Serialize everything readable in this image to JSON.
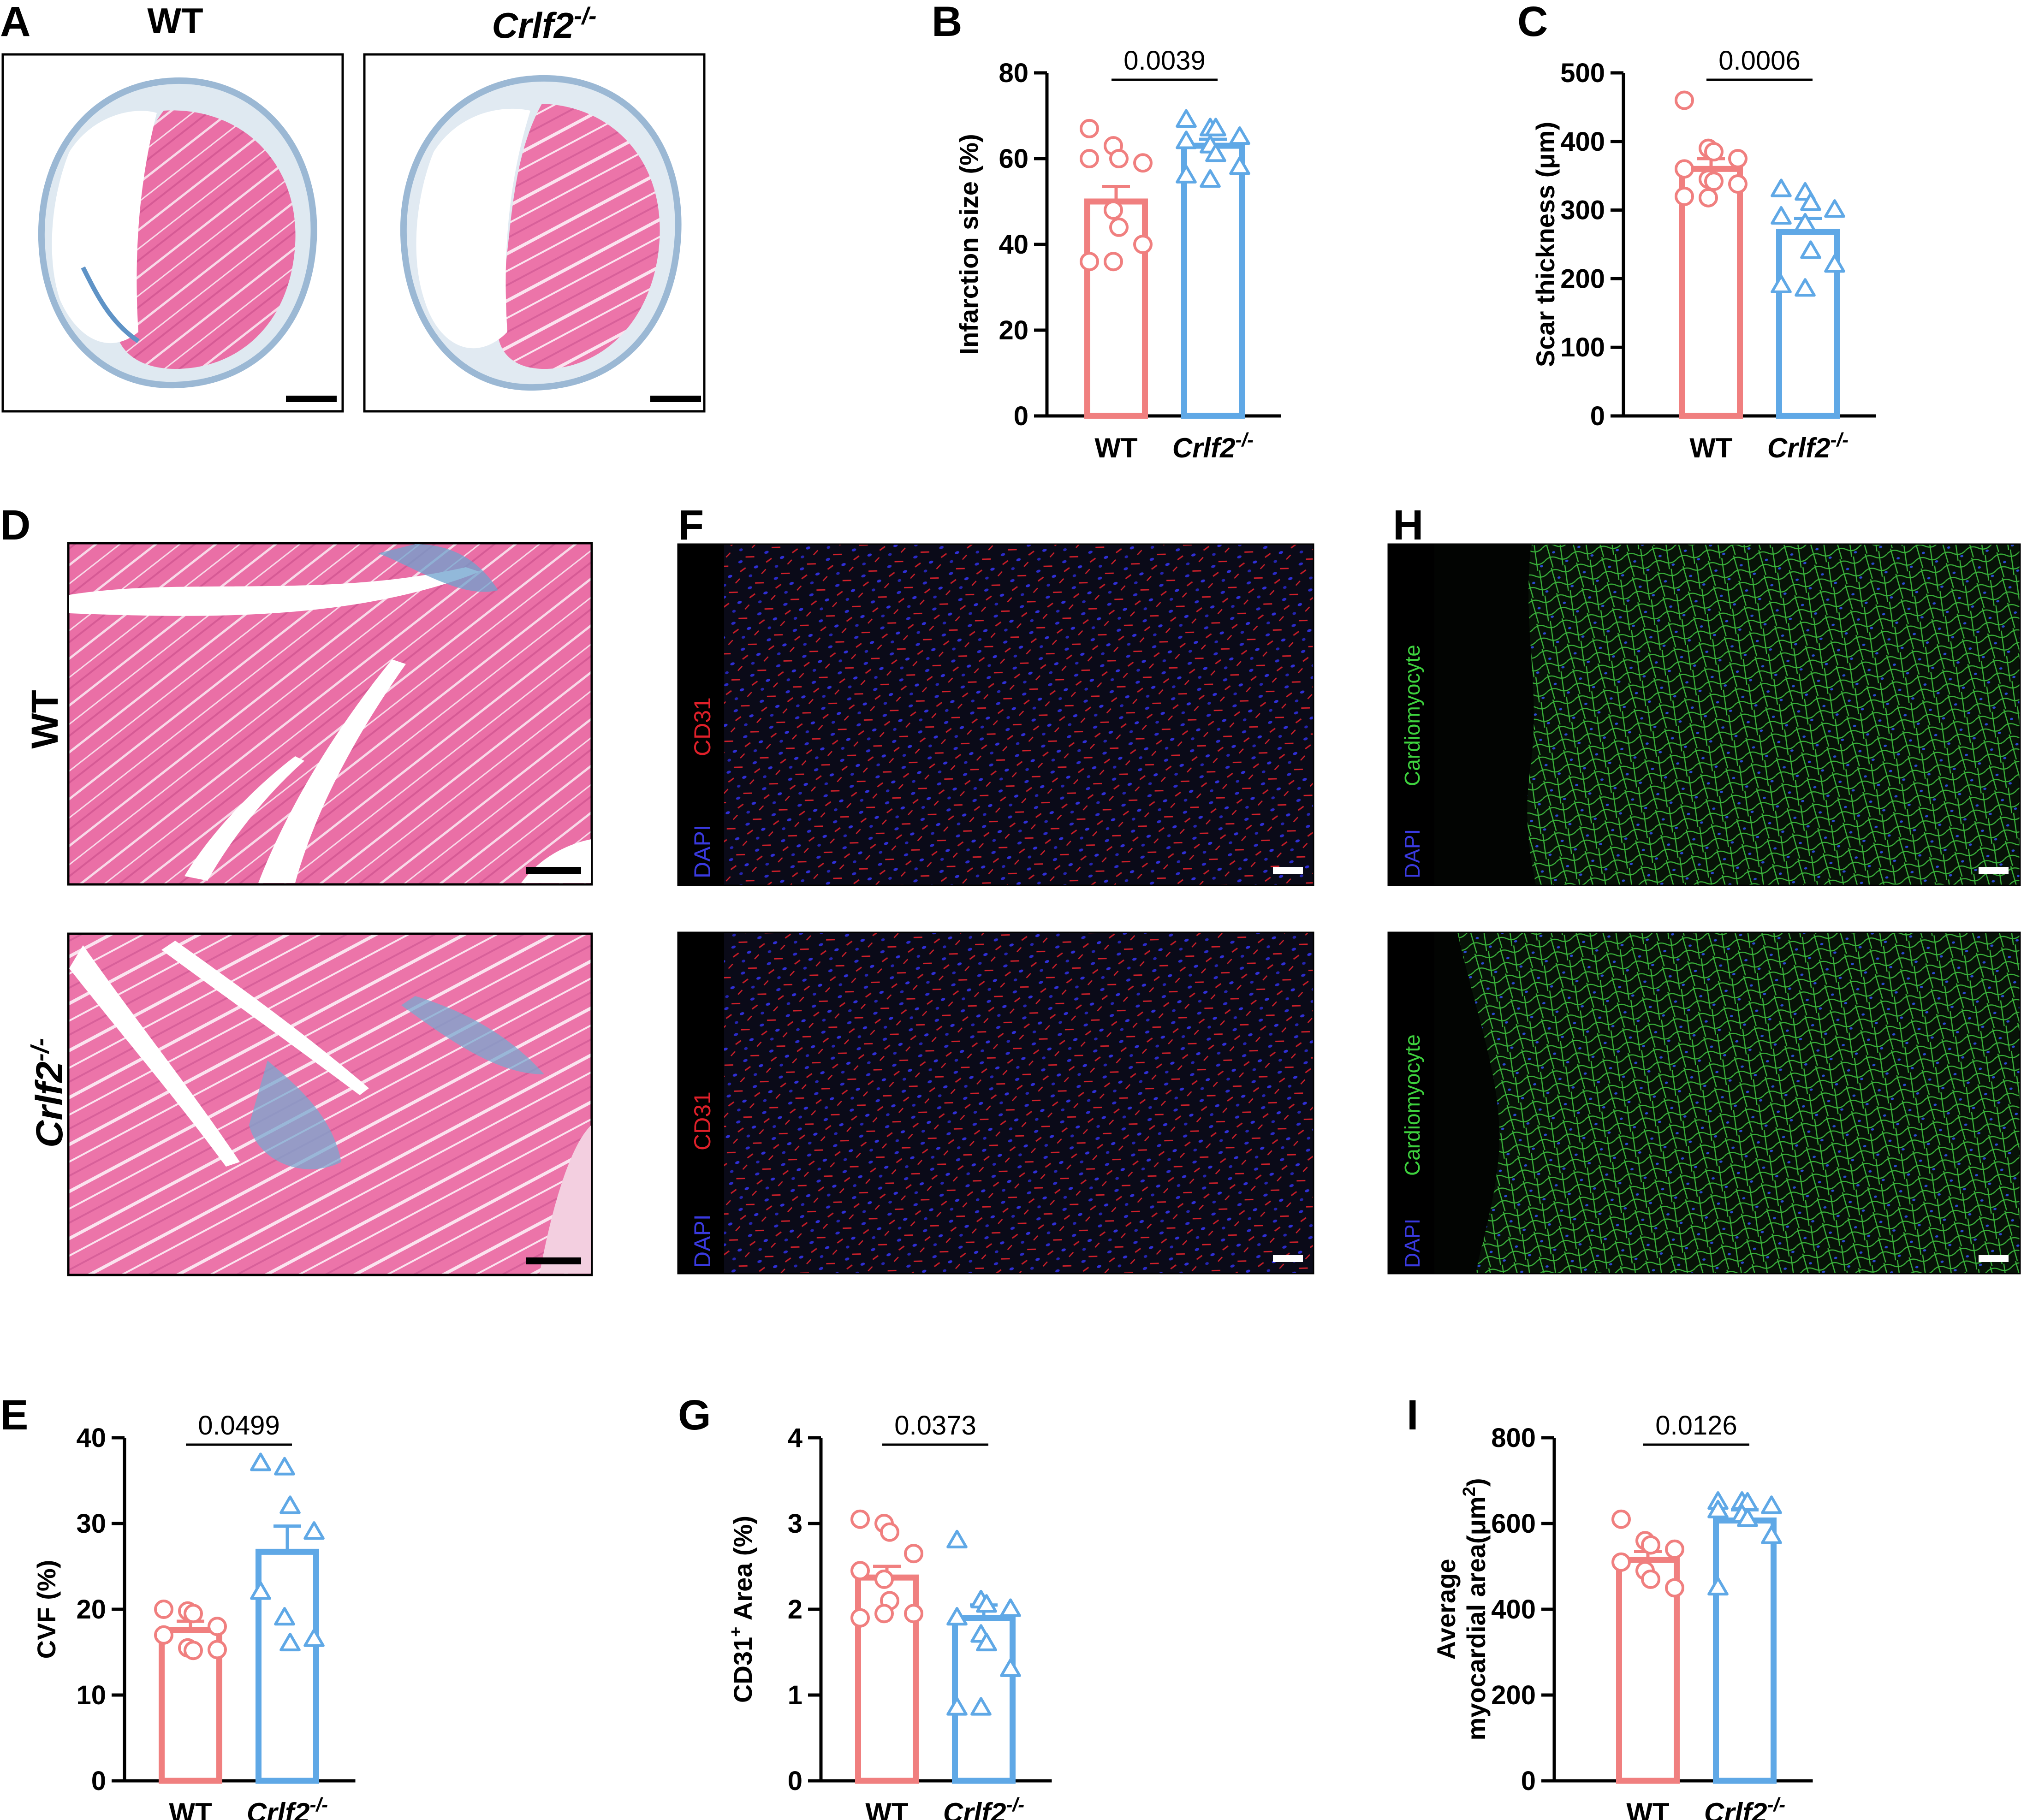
{
  "panel_letters": [
    "A",
    "B",
    "C",
    "D",
    "E",
    "F",
    "G",
    "H",
    "I"
  ],
  "colors": {
    "wt": "#f07f7f",
    "ko": "#5fa8e6"
  },
  "group_wt": "WT",
  "group_ko_main": "Crlf2",
  "group_ko_sup": "-/-",
  "micro": {
    "cd31_label": "CD31",
    "dapi_label": "DAPI",
    "cardiomyocyte_label": "Cardiomyocyte"
  },
  "chart_data": [
    {
      "id": "B",
      "type": "bar",
      "ylabel": "Infarction  size (%)",
      "ylim": [
        0,
        80
      ],
      "yticks": [
        0,
        20,
        40,
        60,
        80
      ],
      "pvalue": "0.0039",
      "series": [
        {
          "mean": 50.0,
          "sem": 3.5,
          "marker": "circle",
          "points": [
            67,
            63,
            60,
            59,
            60,
            48,
            44,
            40,
            36,
            36
          ]
        },
        {
          "mean": 63.0,
          "sem": 1.5,
          "marker": "triangle",
          "points": [
            69,
            67,
            67,
            65,
            64,
            63,
            61,
            58,
            56,
            55
          ]
        }
      ]
    },
    {
      "id": "C",
      "type": "bar",
      "ylabel": "Scar thickness (μm)",
      "ylim": [
        0,
        500
      ],
      "yticks": [
        0,
        100,
        200,
        300,
        400,
        500
      ],
      "pvalue": "0.0006",
      "series": [
        {
          "mean": 360,
          "sem": 15,
          "marker": "circle",
          "points": [
            460,
            390,
            385,
            375,
            360,
            345,
            342,
            338,
            320,
            318
          ]
        },
        {
          "mean": 268,
          "sem": 20,
          "marker": "triangle",
          "points": [
            330,
            325,
            310,
            300,
            290,
            280,
            240,
            220,
            190,
            185
          ]
        }
      ]
    },
    {
      "id": "E",
      "type": "bar",
      "ylabel": "CVF (%)",
      "ylim": [
        0,
        40
      ],
      "yticks": [
        0,
        10,
        20,
        30,
        40
      ],
      "pvalue": "0.0499",
      "series": [
        {
          "mean": 17.6,
          "sem": 1.0,
          "marker": "circle",
          "points": [
            20,
            19.8,
            19.5,
            18,
            17,
            15.5,
            15.2,
            15.3
          ]
        },
        {
          "mean": 26.7,
          "sem": 3.0,
          "marker": "triangle",
          "points": [
            37,
            36.5,
            32,
            29,
            22,
            19,
            16,
            16.5
          ]
        }
      ]
    },
    {
      "id": "G",
      "type": "bar",
      "ylabel_main": "CD31",
      "ylabel_sup": "+",
      "ylabel_rest": " Area (%)",
      "ylim": [
        0,
        4
      ],
      "yticks": [
        0,
        1,
        2,
        3,
        4
      ],
      "pvalue": "0.0373",
      "series": [
        {
          "mean": 2.37,
          "sem": 0.13,
          "marker": "circle",
          "points": [
            3.05,
            3.0,
            2.9,
            2.65,
            2.45,
            2.35,
            2.1,
            1.95,
            1.9,
            1.95
          ]
        },
        {
          "mean": 1.9,
          "sem": 0.15,
          "marker": "triangle",
          "points": [
            2.8,
            2.1,
            2.05,
            2.0,
            1.9,
            1.7,
            1.6,
            1.3,
            0.85,
            0.85
          ]
        }
      ]
    },
    {
      "id": "I",
      "type": "bar",
      "ylabel_line1": "Average",
      "ylabel_line2_main": "myocardial area(μm",
      "ylabel_line2_sup": "2",
      "ylabel_line2_end": ")",
      "ylim": [
        0,
        800
      ],
      "yticks": [
        0,
        200,
        400,
        600,
        800
      ],
      "pvalue": "0.0126",
      "series": [
        {
          "mean": 515,
          "sem": 20,
          "marker": "circle",
          "points": [
            610,
            560,
            550,
            540,
            510,
            490,
            470,
            450
          ]
        },
        {
          "mean": 607,
          "sem": 25,
          "marker": "triangle",
          "points": [
            650,
            650,
            648,
            640,
            630,
            620,
            610,
            570,
            450
          ]
        }
      ]
    }
  ]
}
